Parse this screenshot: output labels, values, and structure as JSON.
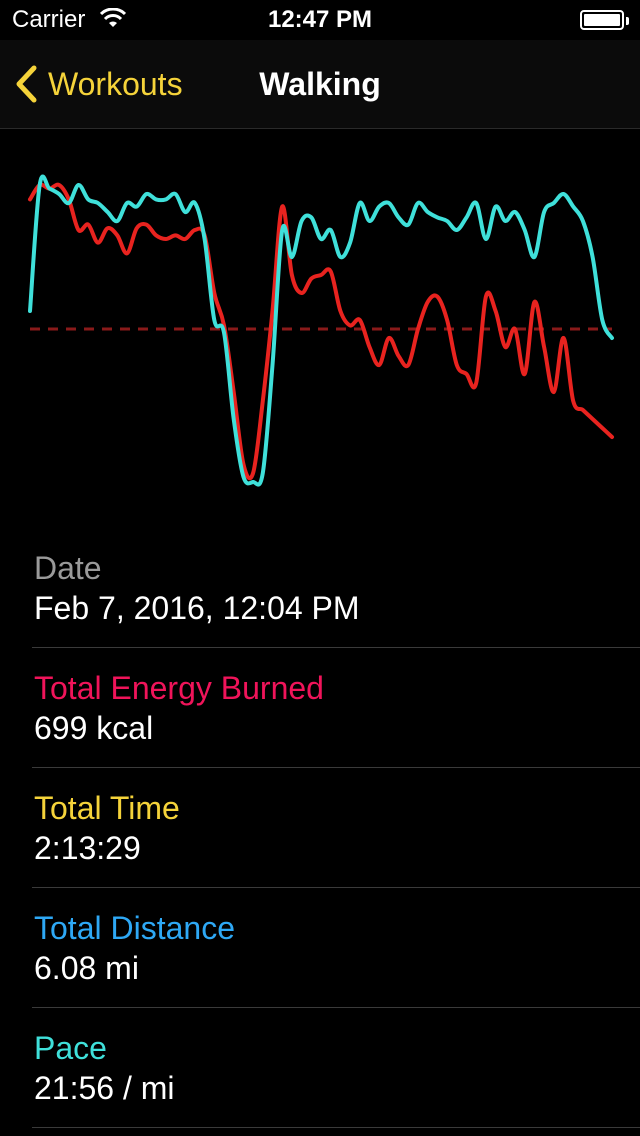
{
  "status_bar": {
    "carrier": "Carrier",
    "time": "12:47 PM"
  },
  "nav": {
    "back_label": "Workouts",
    "title": "Walking"
  },
  "colors": {
    "accent_yellow": "#f5d33a",
    "energy_red": "#f0145a",
    "time_yellow": "#f5d33a",
    "distance_blue": "#2ea8f5",
    "pace_cyan": "#3fe0da",
    "date_gray": "#9a9a9a"
  },
  "chart_data": {
    "type": "line",
    "title": "",
    "xlabel": "",
    "ylabel": "",
    "x": [
      0,
      1,
      2,
      3,
      4,
      5,
      6,
      7,
      8,
      9,
      10,
      11,
      12,
      13,
      14,
      15,
      16,
      17,
      18,
      19,
      20,
      21,
      22,
      23,
      24,
      25,
      26,
      27,
      28,
      29,
      30,
      31,
      32,
      33,
      34,
      35,
      36,
      37,
      38,
      39,
      40,
      41,
      42,
      43,
      44,
      45,
      46,
      47,
      48,
      49,
      50,
      51,
      52,
      53,
      54,
      55,
      56,
      57,
      58,
      59,
      60
    ],
    "series": [
      {
        "color": "#e8231f",
        "values": [
          0.72,
          0.8,
          0.78,
          0.8,
          0.72,
          0.55,
          0.58,
          0.48,
          0.56,
          0.52,
          0.42,
          0.56,
          0.58,
          0.52,
          0.5,
          0.52,
          0.5,
          0.55,
          0.52,
          0.2,
          0.02,
          -0.35,
          -0.75,
          -0.8,
          -0.4,
          0.1,
          0.68,
          0.3,
          0.2,
          0.28,
          0.3,
          0.32,
          0.1,
          0.02,
          0.05,
          -0.1,
          -0.2,
          -0.05,
          -0.15,
          -0.2,
          0.0,
          0.15,
          0.18,
          0.05,
          -0.2,
          -0.25,
          -0.3,
          0.18,
          0.1,
          -0.1,
          0.0,
          -0.25,
          0.15,
          -0.1,
          -0.35,
          -0.05,
          -0.4,
          -0.45,
          -0.5,
          -0.55,
          -0.6
        ]
      },
      {
        "color": "#3fe0da",
        "values": [
          0.1,
          0.8,
          0.78,
          0.75,
          0.7,
          0.8,
          0.72,
          0.7,
          0.65,
          0.6,
          0.7,
          0.68,
          0.75,
          0.72,
          0.72,
          0.75,
          0.65,
          0.7,
          0.5,
          0.05,
          -0.02,
          -0.5,
          -0.82,
          -0.85,
          -0.8,
          -0.2,
          0.55,
          0.4,
          0.6,
          0.62,
          0.5,
          0.55,
          0.4,
          0.48,
          0.7,
          0.6,
          0.68,
          0.7,
          0.62,
          0.58,
          0.7,
          0.65,
          0.62,
          0.6,
          0.55,
          0.62,
          0.7,
          0.5,
          0.68,
          0.6,
          0.65,
          0.55,
          0.4,
          0.65,
          0.7,
          0.75,
          0.68,
          0.6,
          0.4,
          0.05,
          -0.05
        ]
      }
    ],
    "average_line": 0.0,
    "ylim": [
      -1,
      1
    ],
    "grid": false
  },
  "rows": [
    {
      "label": "Date",
      "value": "Feb 7, 2016, 12:04 PM",
      "color": "#9a9a9a"
    },
    {
      "label": "Total Energy Burned",
      "value": "699 kcal",
      "color": "#f0145a"
    },
    {
      "label": "Total Time",
      "value": "2:13:29",
      "color": "#f5d33a"
    },
    {
      "label": "Total Distance",
      "value": "6.08 mi",
      "color": "#2ea8f5"
    },
    {
      "label": "Pace",
      "value": "21:56 / mi",
      "color": "#3fe0da"
    }
  ]
}
